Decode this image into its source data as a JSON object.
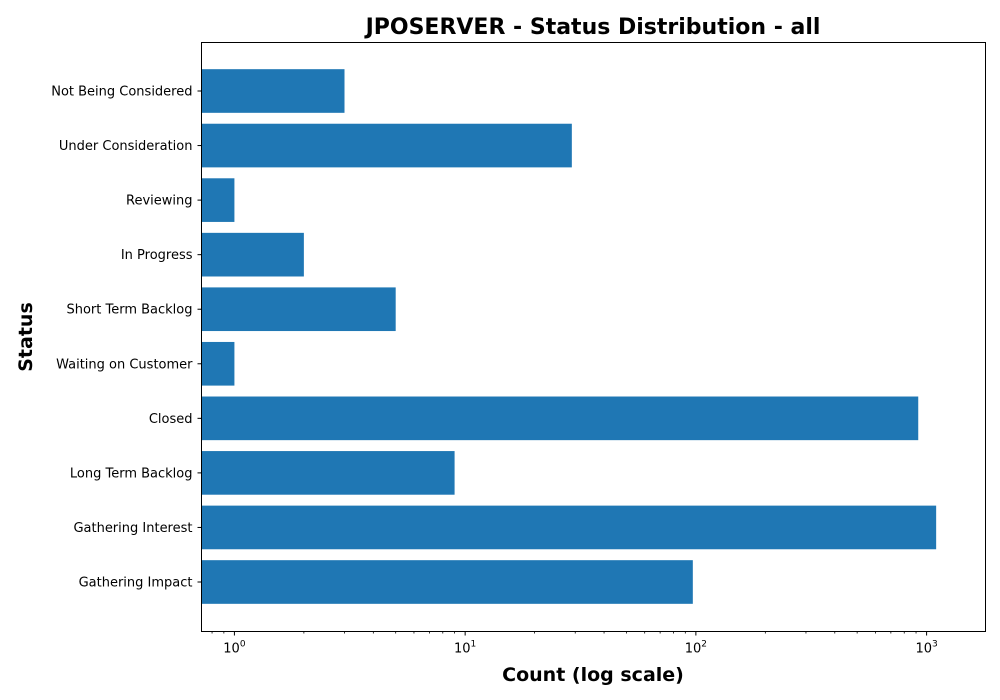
{
  "chart_data": {
    "type": "bar",
    "orientation": "horizontal",
    "title": "JPOSERVER - Status Distribution - all",
    "xlabel": "Count (log scale)",
    "ylabel": "Status",
    "x_scale": "log",
    "xlim": [
      0.72,
      1800
    ],
    "x_ticks": [
      {
        "value": 1,
        "base": "10",
        "exp": "0"
      },
      {
        "value": 10,
        "base": "10",
        "exp": "1"
      },
      {
        "value": 100,
        "base": "10",
        "exp": "2"
      },
      {
        "value": 1000,
        "base": "10",
        "exp": "3"
      }
    ],
    "categories": [
      "Not Being Considered",
      "Under Consideration",
      "Reviewing",
      "In Progress",
      "Short Term Backlog",
      "Waiting on Customer",
      "Closed",
      "Long Term Backlog",
      "Gathering Interest",
      "Gathering Impact"
    ],
    "values": [
      3,
      29,
      1,
      2,
      5,
      1,
      920,
      9,
      1100,
      97
    ],
    "bar_color": "#1f77b4",
    "grid": false,
    "legend": "none"
  }
}
